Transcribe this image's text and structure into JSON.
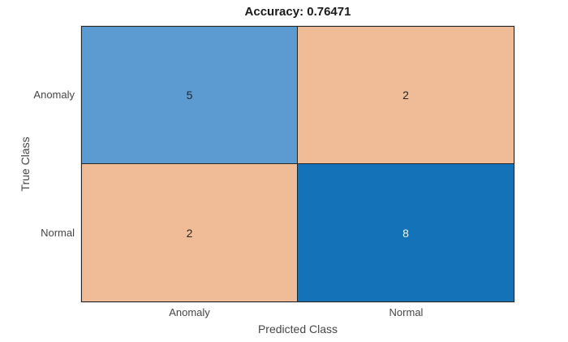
{
  "title": "Accuracy: 0.76471",
  "axes": {
    "x_label": "Predicted Class",
    "y_label": "True Class",
    "x_ticks": [
      "Anomaly",
      "Normal"
    ],
    "y_ticks": [
      "Anomaly",
      "Normal"
    ]
  },
  "chart_data": {
    "type": "heatmap",
    "title": "Accuracy: 0.76471",
    "accuracy": 0.76471,
    "xlabel": "Predicted Class",
    "ylabel": "True Class",
    "x_categories": [
      "Anomaly",
      "Normal"
    ],
    "y_categories": [
      "Anomaly",
      "Normal"
    ],
    "matrix": [
      [
        5,
        2
      ],
      [
        2,
        8
      ]
    ],
    "cells": [
      {
        "true_class": "Anomaly",
        "predicted_class": "Anomaly",
        "value": 5,
        "bg": "#5B9BD1",
        "fg": "#262626"
      },
      {
        "true_class": "Anomaly",
        "predicted_class": "Normal",
        "value": 2,
        "bg": "#F0BC97",
        "fg": "#262626"
      },
      {
        "true_class": "Normal",
        "predicted_class": "Anomaly",
        "value": 2,
        "bg": "#F0BC97",
        "fg": "#262626"
      },
      {
        "true_class": "Normal",
        "predicted_class": "Normal",
        "value": 8,
        "bg": "#1372B8",
        "fg": "#F5F5F5"
      }
    ],
    "legend": "none",
    "grid": "cell borders only"
  },
  "colors": {
    "background": "#FFFFFF",
    "grid_border": "#262626",
    "outer_halo": "#DCDCDC",
    "title_text": "#1A1A1A",
    "axis_text": "#464646",
    "diagonal_low": "#5B9BD1",
    "diagonal_high": "#1372B8",
    "off_diagonal_low": "#F0BC97"
  }
}
